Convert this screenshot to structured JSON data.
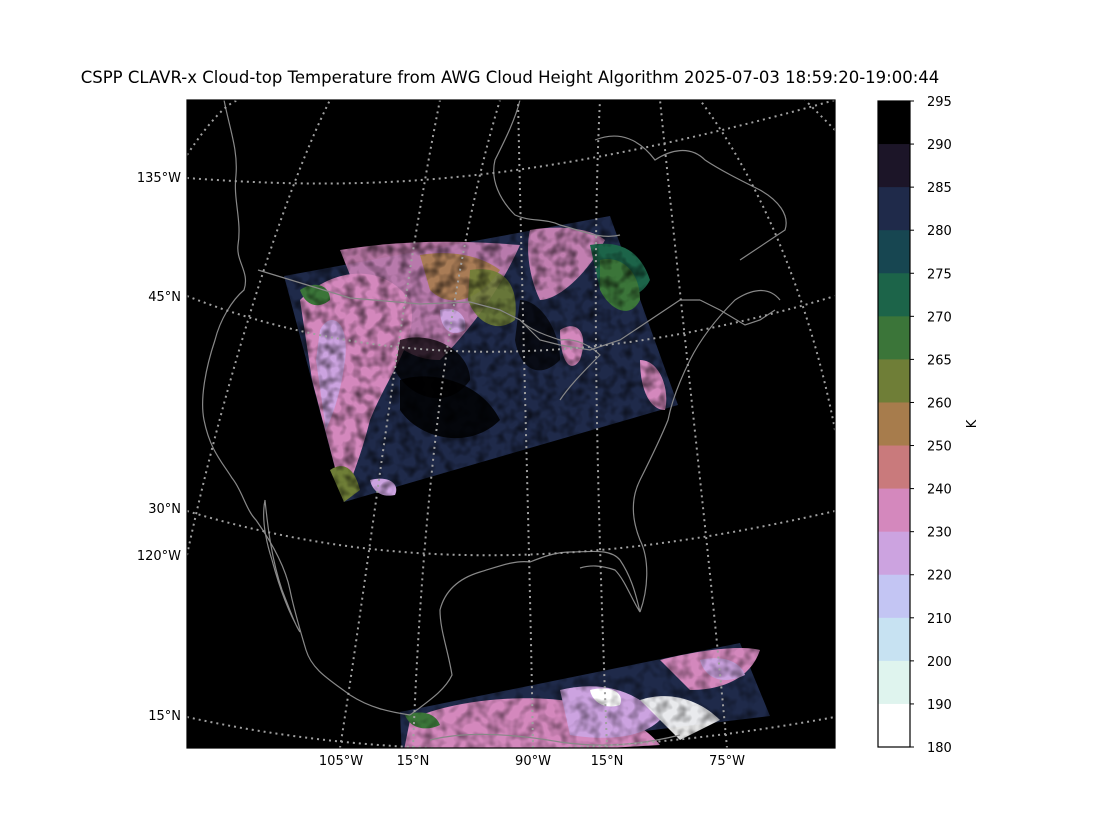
{
  "title": "CSPP CLAVR-x Cloud-top Temperature from AWG Cloud Height Algorithm 2025-07-03 18:59:20-19:00:44",
  "map": {
    "background_color": "#000000",
    "coastline_color": "#888888",
    "gridline_color": "#a0a0a0",
    "gridline_style": "dotted",
    "latitude_labels": [
      "135°W",
      "45°N",
      "30°N",
      "120°W",
      "15°N"
    ],
    "longitude_labels": [
      "105°W",
      "15°N",
      "90°W",
      "15°N",
      "75°W"
    ]
  },
  "colorbar": {
    "unit_label": "K",
    "ticks": [
      295,
      290,
      285,
      280,
      275,
      270,
      265,
      260,
      250,
      240,
      230,
      220,
      210,
      200,
      190,
      180
    ],
    "colors_top_to_bottom": [
      "#000000",
      "#1c1528",
      "#1f2a4a",
      "#174651",
      "#1c6449",
      "#3b7539",
      "#6f7e37",
      "#a77c4c",
      "#c97a7c",
      "#d488bd",
      "#cca3e0",
      "#c3c5f3",
      "#c7e2f2",
      "#dff4ee",
      "#ffffff"
    ]
  }
}
